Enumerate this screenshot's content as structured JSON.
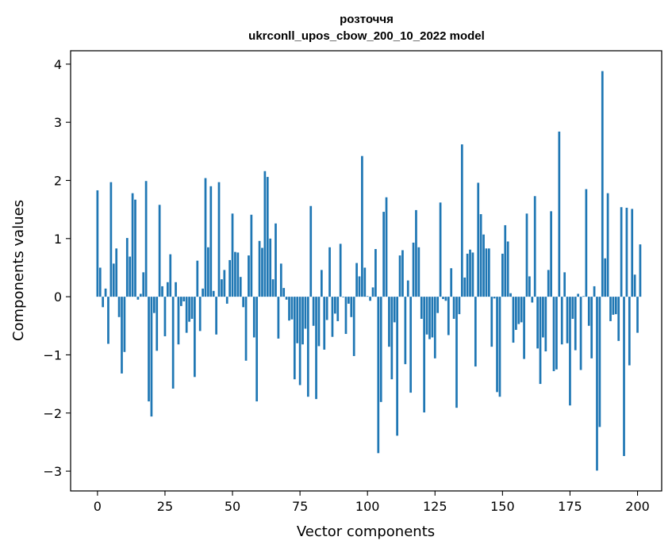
{
  "chart_data": {
    "type": "bar",
    "title_line1": "розточчя",
    "title_line2": "ukrconll_upos_cbow_200_10_2022 model",
    "xlabel": "Vector components",
    "ylabel": "Components values",
    "xlim": [
      -9.95,
      208.95
    ],
    "ylim": [
      -3.34,
      4.23
    ],
    "xticks": [
      0,
      25,
      50,
      75,
      100,
      125,
      150,
      175,
      200
    ],
    "yticks": [
      -3,
      -2,
      -1,
      0,
      1,
      2,
      3,
      4
    ],
    "ytick_labels": [
      "−3",
      "−2",
      "−1",
      "0",
      "1",
      "2",
      "3",
      "4"
    ],
    "bar_color": "#1f77b4",
    "grid": false,
    "values": [
      1.83,
      0.5,
      -0.18,
      0.14,
      -0.81,
      1.97,
      0.57,
      0.83,
      -0.35,
      -1.32,
      -0.95,
      1.01,
      0.69,
      1.78,
      1.67,
      -0.05,
      0.05,
      0.42,
      1.99,
      -1.8,
      -2.06,
      -0.28,
      -0.93,
      1.58,
      0.18,
      -0.68,
      0.25,
      0.73,
      -1.58,
      0.25,
      -0.82,
      -0.16,
      -0.08,
      -0.62,
      -0.43,
      -0.38,
      -1.38,
      0.62,
      -0.59,
      0.14,
      2.04,
      0.85,
      1.9,
      0.1,
      -0.65,
      1.97,
      0.3,
      0.46,
      -0.12,
      0.63,
      1.43,
      0.77,
      0.76,
      0.34,
      -0.18,
      -1.1,
      0.71,
      1.41,
      -0.7,
      -1.8,
      0.96,
      0.84,
      2.16,
      2.06,
      1.0,
      0.3,
      1.26,
      -0.72,
      0.57,
      0.15,
      -0.05,
      -0.41,
      -0.39,
      -1.42,
      -0.8,
      -1.52,
      -0.82,
      -0.55,
      -1.72,
      1.56,
      -0.5,
      -1.76,
      -0.85,
      0.46,
      -0.91,
      -0.4,
      0.85,
      -0.69,
      -0.29,
      -0.42,
      0.91,
      -0.01,
      -0.64,
      -0.12,
      -0.35,
      -1.02,
      0.58,
      0.35,
      2.42,
      0.5,
      0.01,
      -0.07,
      0.16,
      0.82,
      -2.69,
      -1.81,
      1.46,
      1.71,
      -0.86,
      -1.42,
      -0.44,
      -2.39,
      0.71,
      0.8,
      -1.16,
      0.28,
      -1.65,
      0.93,
      1.49,
      0.85,
      -0.38,
      -1.99,
      -0.65,
      -0.73,
      -0.7,
      -1.06,
      -0.28,
      1.62,
      -0.04,
      -0.07,
      -0.66,
      0.49,
      -0.38,
      -1.91,
      -0.3,
      2.62,
      0.33,
      0.74,
      0.81,
      0.76,
      -1.2,
      1.96,
      1.42,
      1.07,
      0.83,
      0.83,
      -0.86,
      -0.03,
      -1.64,
      -1.72,
      0.74,
      1.23,
      0.95,
      0.06,
      -0.79,
      -0.57,
      -0.47,
      -0.44,
      -1.07,
      1.43,
      0.35,
      -0.1,
      1.73,
      -0.89,
      -1.5,
      -0.7,
      -0.94,
      0.46,
      1.47,
      -1.28,
      -1.25,
      2.84,
      -0.82,
      0.42,
      -0.8,
      -1.87,
      -0.38,
      -0.92,
      0.05,
      -1.26,
      0.01,
      1.85,
      -0.5,
      -1.06,
      0.18,
      -2.99,
      -2.24,
      3.88,
      0.66,
      1.78,
      -0.42,
      -0.31,
      -0.3,
      -0.76,
      1.54,
      -2.74,
      1.53,
      -1.18,
      1.51,
      0.38,
      -0.62,
      0.9
    ]
  }
}
